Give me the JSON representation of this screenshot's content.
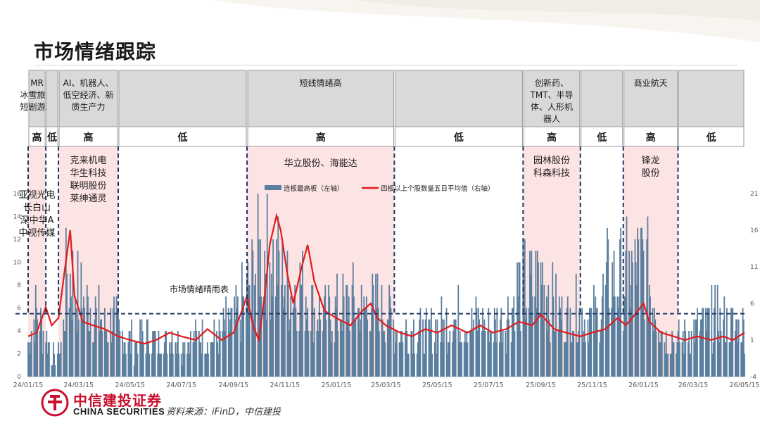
{
  "page": {
    "title": "市场情绪跟踪",
    "source": "资料来源：iFinD，中信建投",
    "brand_cn": "中信建投证券",
    "brand_en": "CHINA SECURITIES"
  },
  "colors": {
    "bar": "#5b7f9e",
    "line": "#e31a1c",
    "high_band": "#fde4e4",
    "header_fill": "#d9d9d9",
    "brand_red": "#c8102e"
  },
  "chart_data": {
    "type": "bar",
    "xlabel": "",
    "ylabel": "",
    "y_left": {
      "min": 0,
      "max": 16,
      "ticks": [
        0,
        2,
        4,
        6,
        8,
        10,
        12,
        14,
        16
      ]
    },
    "y_right": {
      "min": -4,
      "max": 21,
      "ticks": [
        -4,
        1,
        6,
        11,
        16,
        21
      ]
    },
    "x_ticks": [
      "24/01/15",
      "24/03/15",
      "24/05/15",
      "24/07/15",
      "24/09/15",
      "24/11/15",
      "25/01/15",
      "25/03/15",
      "25/05/15",
      "25/07/15",
      "25/09/15",
      "25/11/15",
      "26/01/15",
      "26/03/15",
      "26/05/15"
    ],
    "x_range": [
      "2024-01-15",
      "2026-05-15"
    ],
    "threshold_left": 5.5,
    "legend": [
      "连板最高板（左轴）",
      "四板以上个股数量五日平均值（右轴）"
    ],
    "legend_position": "top",
    "series": [
      {
        "name": "连板最高板（左轴）",
        "axis": "left",
        "kind": "bar",
        "anchors": [
          [
            "2024-01-15",
            4
          ],
          [
            "2024-01-25",
            8
          ],
          [
            "2024-02-05",
            5
          ],
          [
            "2024-02-15",
            2
          ],
          [
            "2024-02-25",
            4
          ],
          [
            "2024-03-01",
            13
          ],
          [
            "2024-03-10",
            11
          ],
          [
            "2024-03-20",
            9
          ],
          [
            "2024-04-01",
            8
          ],
          [
            "2024-04-15",
            6
          ],
          [
            "2024-04-25",
            7
          ],
          [
            "2024-05-05",
            5
          ],
          [
            "2024-05-20",
            4
          ],
          [
            "2024-06-05",
            5
          ],
          [
            "2024-06-20",
            4
          ],
          [
            "2024-07-05",
            5
          ],
          [
            "2024-07-20",
            4
          ],
          [
            "2024-08-05",
            5
          ],
          [
            "2024-08-20",
            4
          ],
          [
            "2024-09-05",
            6
          ],
          [
            "2024-09-20",
            7
          ],
          [
            "2024-10-01",
            10
          ],
          [
            "2024-10-10",
            13
          ],
          [
            "2024-10-20",
            15
          ],
          [
            "2024-10-28",
            14
          ],
          [
            "2024-11-10",
            13
          ],
          [
            "2024-11-20",
            10
          ],
          [
            "2024-12-05",
            11
          ],
          [
            "2024-12-20",
            8
          ],
          [
            "2025-01-05",
            7
          ],
          [
            "2025-01-20",
            8
          ],
          [
            "2025-02-01",
            9
          ],
          [
            "2025-02-15",
            8
          ],
          [
            "2025-03-01",
            9
          ],
          [
            "2025-03-15",
            8
          ],
          [
            "2025-04-01",
            5
          ],
          [
            "2025-04-15",
            6
          ],
          [
            "2025-05-01",
            5
          ],
          [
            "2025-05-20",
            6
          ],
          [
            "2025-06-05",
            7
          ],
          [
            "2025-06-20",
            6
          ],
          [
            "2025-07-05",
            7
          ],
          [
            "2025-07-20",
            6
          ],
          [
            "2025-08-05",
            7
          ],
          [
            "2025-08-20",
            11
          ],
          [
            "2025-09-01",
            10
          ],
          [
            "2025-09-15",
            13
          ],
          [
            "2025-10-01",
            8
          ],
          [
            "2025-10-15",
            7
          ],
          [
            "2025-11-01",
            8
          ],
          [
            "2025-11-20",
            7
          ],
          [
            "2025-12-05",
            12
          ],
          [
            "2025-12-20",
            11
          ],
          [
            "2026-01-05",
            13
          ],
          [
            "2026-01-15",
            14
          ],
          [
            "2026-01-25",
            10
          ],
          [
            "2026-02-10",
            5
          ],
          [
            "2026-02-25",
            4
          ],
          [
            "2026-03-10",
            5
          ],
          [
            "2026-03-25",
            6
          ],
          [
            "2026-04-10",
            7
          ],
          [
            "2026-04-25",
            6
          ],
          [
            "2026-05-15",
            6
          ]
        ]
      },
      {
        "name": "四板以上个股数量五日平均值（右轴）",
        "axis": "right",
        "kind": "line",
        "points": [
          [
            "2024-01-15",
            1.5
          ],
          [
            "2024-01-25",
            2
          ],
          [
            "2024-02-05",
            5.5
          ],
          [
            "2024-02-12",
            3
          ],
          [
            "2024-02-20",
            4
          ],
          [
            "2024-02-28",
            11
          ],
          [
            "2024-03-05",
            16
          ],
          [
            "2024-03-10",
            7
          ],
          [
            "2024-03-20",
            3.5
          ],
          [
            "2024-04-01",
            3
          ],
          [
            "2024-04-15",
            2.5
          ],
          [
            "2024-05-01",
            1.5
          ],
          [
            "2024-05-15",
            1
          ],
          [
            "2024-06-01",
            0.5
          ],
          [
            "2024-06-15",
            1
          ],
          [
            "2024-07-01",
            2
          ],
          [
            "2024-07-15",
            1.5
          ],
          [
            "2024-08-01",
            1
          ],
          [
            "2024-08-15",
            2.5
          ],
          [
            "2024-09-01",
            1
          ],
          [
            "2024-09-15",
            2
          ],
          [
            "2024-09-25",
            5
          ],
          [
            "2024-10-01",
            7
          ],
          [
            "2024-10-08",
            3
          ],
          [
            "2024-10-15",
            1
          ],
          [
            "2024-10-22",
            7
          ],
          [
            "2024-10-28",
            14
          ],
          [
            "2024-11-05",
            18
          ],
          [
            "2024-11-10",
            16
          ],
          [
            "2024-11-18",
            10
          ],
          [
            "2024-11-25",
            6
          ],
          [
            "2024-12-05",
            11
          ],
          [
            "2024-12-12",
            14
          ],
          [
            "2024-12-20",
            9
          ],
          [
            "2025-01-01",
            5
          ],
          [
            "2025-01-15",
            4
          ],
          [
            "2025-02-01",
            3
          ],
          [
            "2025-02-15",
            5
          ],
          [
            "2025-02-25",
            6
          ],
          [
            "2025-03-05",
            4
          ],
          [
            "2025-03-15",
            3
          ],
          [
            "2025-04-01",
            2
          ],
          [
            "2025-04-15",
            1.5
          ],
          [
            "2025-05-01",
            2.5
          ],
          [
            "2025-05-15",
            2
          ],
          [
            "2025-06-01",
            3
          ],
          [
            "2025-06-20",
            2
          ],
          [
            "2025-07-05",
            3
          ],
          [
            "2025-07-20",
            2
          ],
          [
            "2025-08-05",
            2.5
          ],
          [
            "2025-08-20",
            3.5
          ],
          [
            "2025-09-05",
            3
          ],
          [
            "2025-09-15",
            4.5
          ],
          [
            "2025-10-01",
            2.5
          ],
          [
            "2025-10-15",
            2
          ],
          [
            "2025-11-01",
            1.5
          ],
          [
            "2025-11-15",
            2
          ],
          [
            "2025-12-01",
            2.5
          ],
          [
            "2025-12-15",
            4
          ],
          [
            "2025-12-25",
            3
          ],
          [
            "2026-01-05",
            4.5
          ],
          [
            "2026-01-15",
            6
          ],
          [
            "2026-01-22",
            3.5
          ],
          [
            "2026-02-05",
            2
          ],
          [
            "2026-02-20",
            1.5
          ],
          [
            "2026-03-05",
            1
          ],
          [
            "2026-03-20",
            1.5
          ],
          [
            "2026-04-05",
            1
          ],
          [
            "2026-04-20",
            1.5
          ],
          [
            "2026-05-01",
            1
          ],
          [
            "2026-05-15",
            2
          ]
        ]
      }
    ],
    "periods": [
      {
        "start": "2024-01-15",
        "end": "2024-02-05",
        "level": "高",
        "theme": "MR\n冰雪旅游\n短剧游戏",
        "stocks": "亚视光电\n长白山\n深中华A\n中视传媒"
      },
      {
        "start": "2024-02-05",
        "end": "2024-02-20",
        "level": "低",
        "theme": "",
        "stocks": ""
      },
      {
        "start": "2024-02-20",
        "end": "2024-05-01",
        "level": "高",
        "theme": "AI、机器人、\n低空经济、新\n质生产力",
        "stocks": "克来机电\n华生科技\n联明股份\n莱绅通灵"
      },
      {
        "start": "2024-05-01",
        "end": "2024-10-01",
        "level": "低",
        "theme": "",
        "stocks": ""
      },
      {
        "start": "2024-10-01",
        "end": "2025-03-25",
        "level": "高",
        "theme": "短线情绪高",
        "stocks": "华立股份、海能达"
      },
      {
        "start": "2025-03-25",
        "end": "2025-08-25",
        "level": "低",
        "theme": "",
        "stocks": ""
      },
      {
        "start": "2025-08-25",
        "end": "2025-11-01",
        "level": "高",
        "theme": "创新药、\nTMT、半导\n体、人形机\n器人",
        "stocks": "园林股份\n科森科技"
      },
      {
        "start": "2025-11-01",
        "end": "2025-12-22",
        "level": "低",
        "theme": "",
        "stocks": ""
      },
      {
        "start": "2025-12-22",
        "end": "2026-02-25",
        "level": "高",
        "theme": "商业航天",
        "stocks": "锋龙\n股份"
      },
      {
        "start": "2026-02-25",
        "end": "2026-05-15",
        "level": "低",
        "theme": "",
        "stocks": ""
      }
    ],
    "annotations": [
      {
        "text": "市场情绪晴雨表",
        "date": "2024-08-05",
        "value_left": 7.4
      }
    ]
  }
}
